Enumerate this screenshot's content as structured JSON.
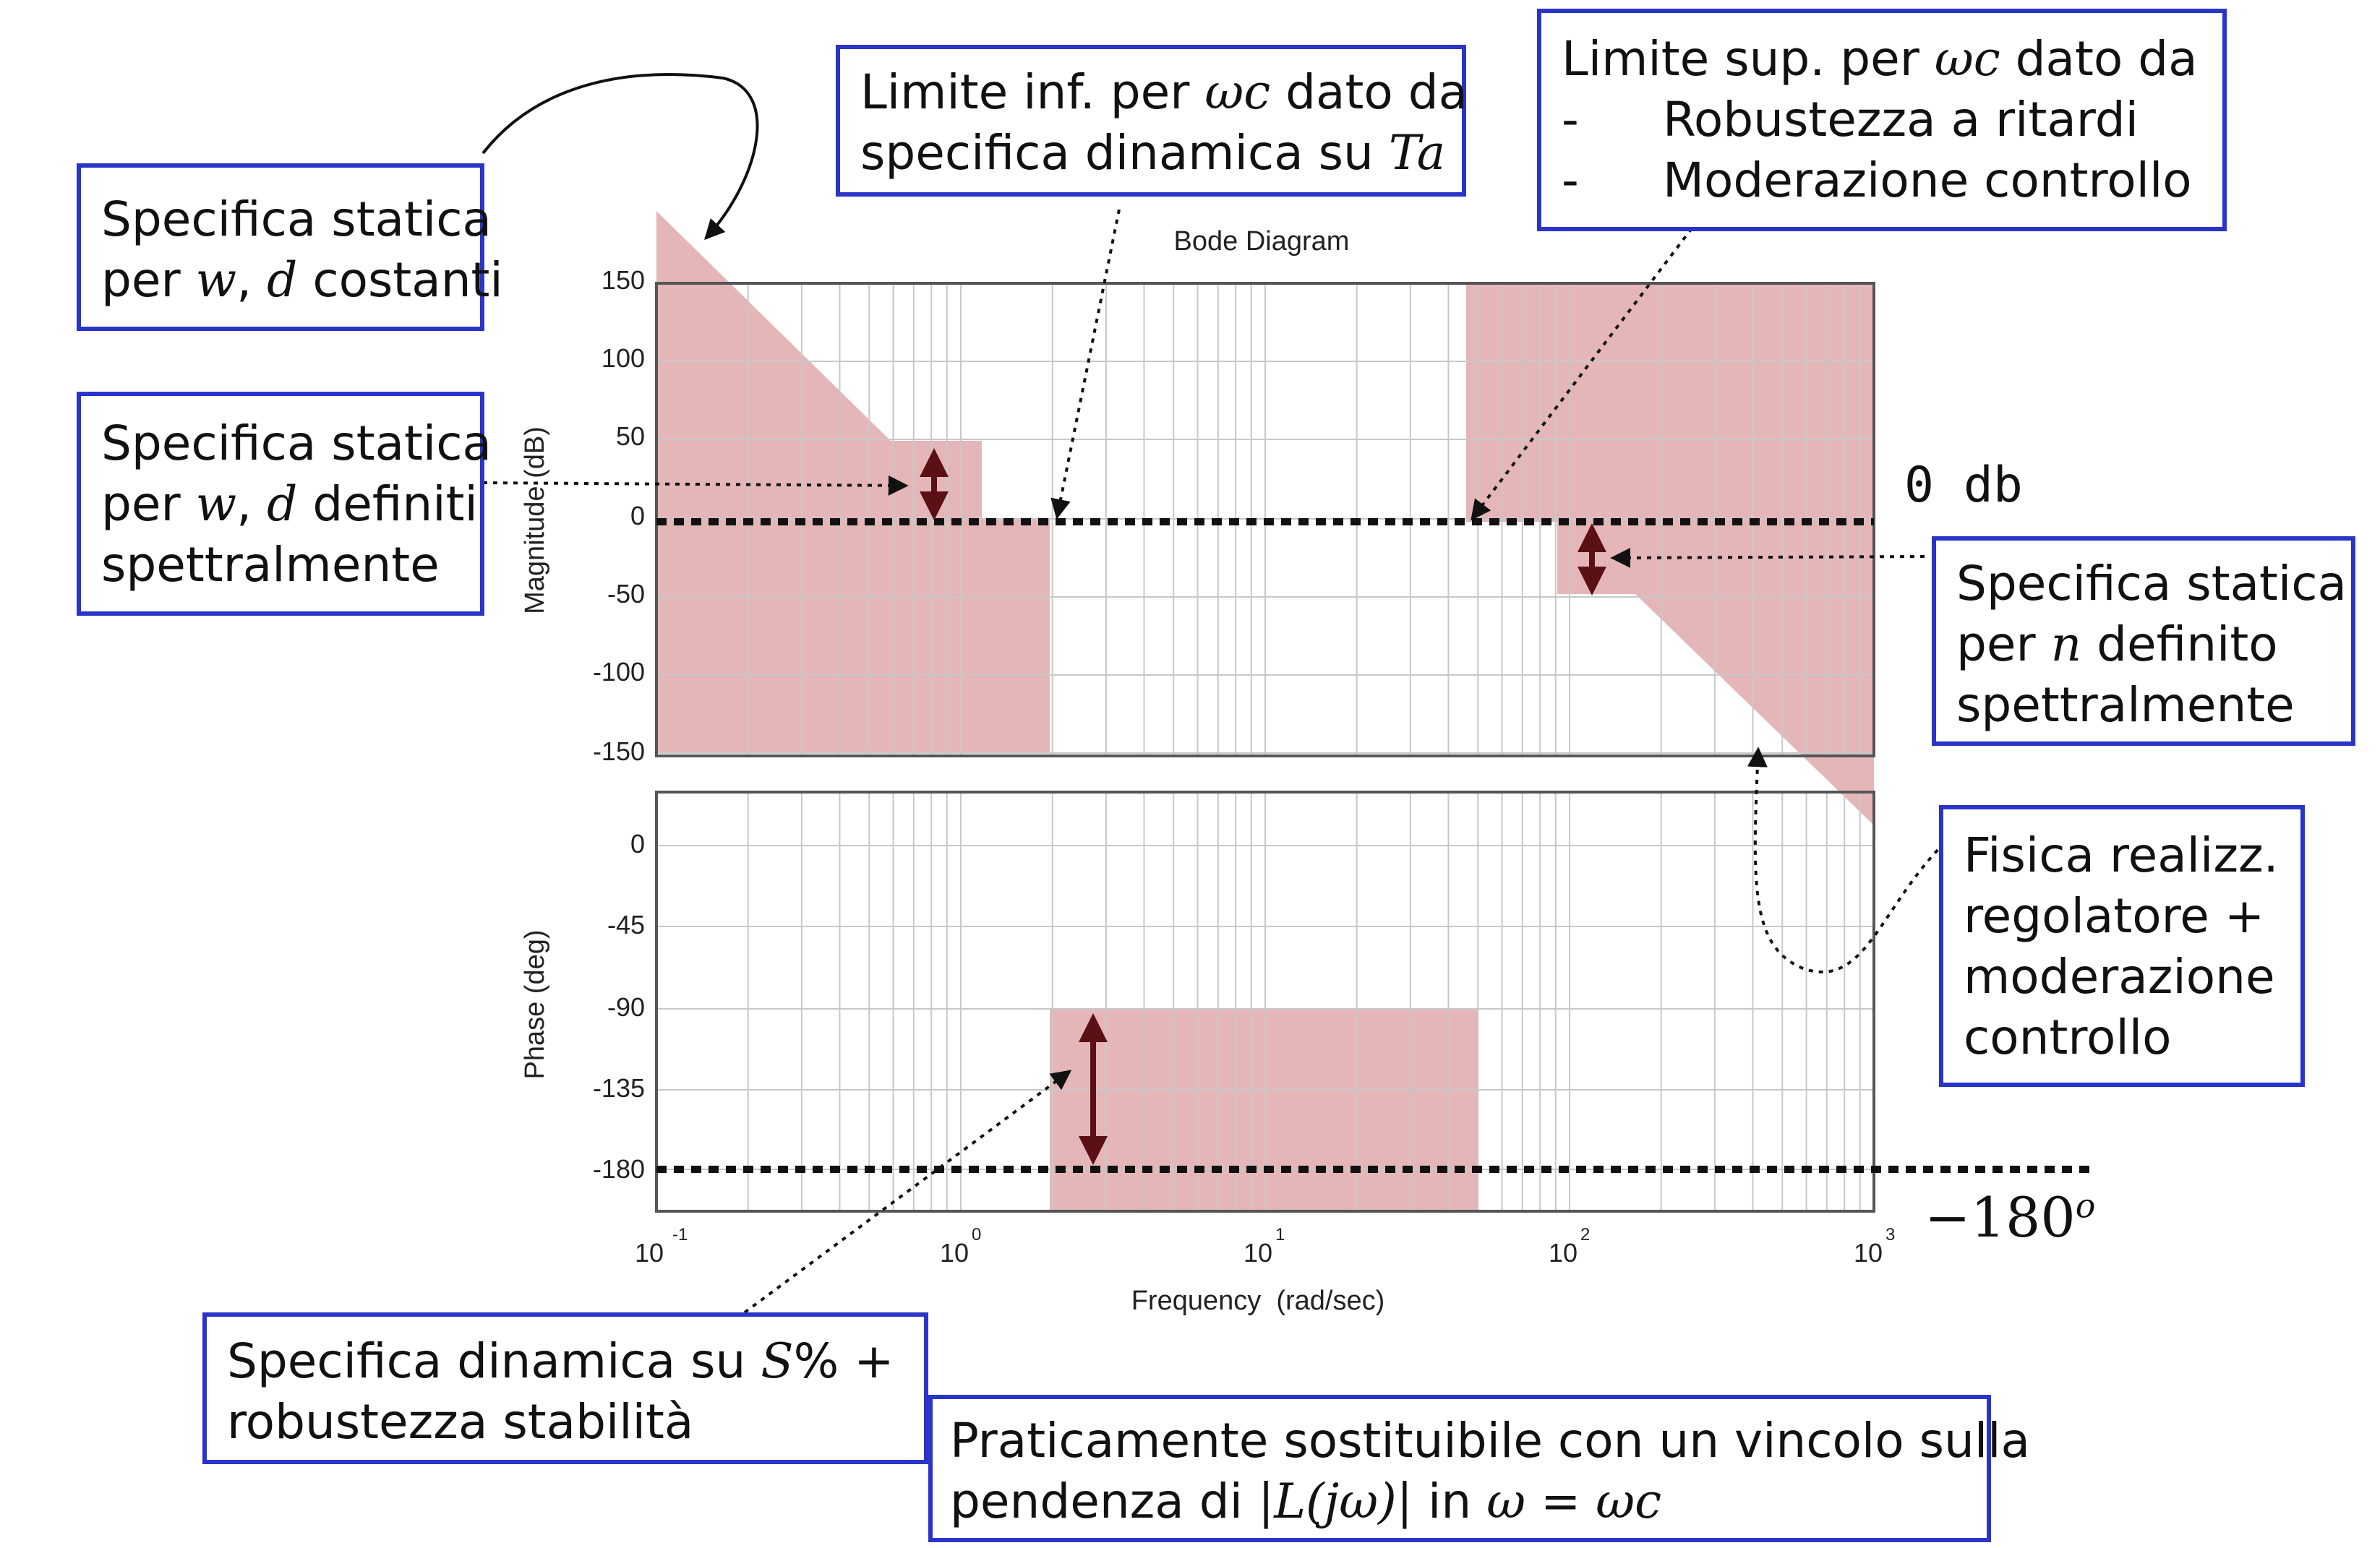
{
  "plot": {
    "title": "Bode Diagram",
    "magnitude_ylabel": "Magnitude (dB)",
    "phase_ylabel": "Phase (deg)",
    "xlabel": "Frequency  (rad/sec)",
    "magnitude_ticks": [
      "150",
      "100",
      "50",
      "0",
      "-50",
      "-100",
      "-150"
    ],
    "phase_ticks": [
      "0",
      "-45",
      "-90",
      "-135",
      "-180"
    ],
    "x_ticks": [
      {
        "base": "10",
        "exp": "-1"
      },
      {
        "base": "10",
        "exp": "0"
      },
      {
        "base": "10",
        "exp": "1"
      },
      {
        "base": "10",
        "exp": "2"
      },
      {
        "base": "10",
        "exp": "3"
      }
    ],
    "colors": {
      "forbidden_region": "#e5b6b8",
      "grid": "#c8c8c8",
      "arrow": "#5a1014",
      "box_border": "#2a35c8"
    }
  },
  "labels": {
    "zero_db": "0 db",
    "minus_180": "−180",
    "minus_180_sup": "o"
  },
  "annotations": {
    "static_const": {
      "line1": "Specifica statica",
      "line2_pre": "per ",
      "line2_math": "w",
      "line2_sep": ", ",
      "line2_math2": "d",
      "line2_post": " costanti"
    },
    "static_spectral": {
      "line1": "Specifica statica",
      "line2_pre": "per ",
      "line2_math": "w",
      "line2_sep": ", ",
      "line2_math2": "d",
      "line2_post": " definiti",
      "line3": "spettralmente"
    },
    "lower_limit": {
      "line1_pre": "Limite inf. per ",
      "line1_math": "ωc",
      "line1_post": " dato da",
      "line2_pre": "specifica dinamica su ",
      "line2_math": "Ta"
    },
    "upper_limit": {
      "line1_pre": "Limite sup. per ",
      "line1_math": "ωc",
      "line1_post": " dato da",
      "item1_bullet": "-",
      "item1": "Robustezza a ritardi",
      "item2_bullet": "-",
      "item2": "Moderazione controllo"
    },
    "static_noise": {
      "line1": "Specifica statica",
      "line2_pre": "per ",
      "line2_math": "n",
      "line2_post": " definito",
      "line3": "spettralmente"
    },
    "physical": {
      "line1": "Fisica realizz.",
      "line2": "regolatore +",
      "line3": "moderazione",
      "line4": "controllo"
    },
    "dynamic": {
      "line1_pre": "Specifica dinamica su ",
      "line1_math": "S",
      "line1_post": "% +",
      "line2": "robustezza stabilità"
    },
    "slope": {
      "line1": "Praticamente sostituibile con un vincolo sulla",
      "line2_pre": "pendenza di ",
      "line2_math": "|L(jω)|",
      "line2_mid": " in ",
      "line2_math2": "ω = ωc"
    }
  }
}
